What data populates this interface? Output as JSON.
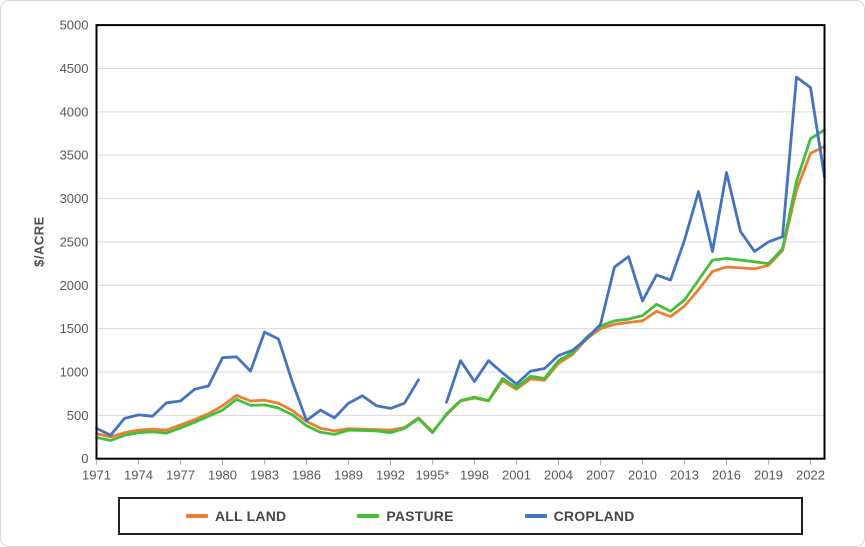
{
  "chart_data": {
    "type": "line",
    "title": "",
    "ylabel": "$/ACRE",
    "xlabel": "",
    "ylim": [
      0,
      5000
    ],
    "ytick_step": 500,
    "x_domain": [
      1971,
      2023
    ],
    "x_tick_start_year": 1971,
    "x_tick_interval": 3,
    "x_tick_labels": [
      "1971",
      "1974",
      "1977",
      "1980",
      "1983",
      "1986",
      "1989",
      "1992",
      "1995*",
      "1998",
      "2001",
      "2004",
      "2007",
      "2010",
      "2013",
      "2016",
      "2019",
      "2022"
    ],
    "grid": "horizontal",
    "legend_position": "bottom",
    "note": "CROPLAND has no data point for 1995 (marked 1995* on axis); series values run annually 1971-2023",
    "colors": {
      "all_land": "#ED7D31",
      "pasture": "#3FC13C",
      "cropland": "#4472C4",
      "gridline": "#D9D9D9",
      "axis_text": "#595959",
      "plot_border": "#000000"
    },
    "series": [
      {
        "name": "ALL LAND",
        "color": "#ED7D31",
        "values": [
          290,
          250,
          300,
          330,
          340,
          330,
          390,
          450,
          520,
          610,
          730,
          665,
          675,
          640,
          555,
          430,
          350,
          320,
          345,
          340,
          335,
          330,
          360,
          470,
          310,
          505,
          665,
          700,
          665,
          900,
          800,
          920,
          905,
          1100,
          1200,
          1380,
          1500,
          1550,
          1570,
          1590,
          1700,
          1640,
          1760,
          1950,
          2160,
          2210,
          2200,
          2190,
          2230,
          2400,
          3100,
          3520,
          3600
        ]
      },
      {
        "name": "PASTURE",
        "color": "#3FC13C",
        "values": [
          245,
          210,
          270,
          300,
          310,
          295,
          355,
          420,
          490,
          560,
          685,
          615,
          620,
          585,
          505,
          380,
          305,
          280,
          330,
          325,
          320,
          300,
          350,
          460,
          300,
          515,
          670,
          710,
          670,
          925,
          820,
          950,
          925,
          1130,
          1220,
          1400,
          1530,
          1590,
          1610,
          1650,
          1780,
          1700,
          1830,
          2060,
          2290,
          2310,
          2290,
          2270,
          2250,
          2420,
          3200,
          3690,
          3790
        ]
      },
      {
        "name": "CROPLAND",
        "color": "#4472C4",
        "values": [
          350,
          270,
          465,
          505,
          490,
          645,
          665,
          800,
          840,
          1165,
          1175,
          1010,
          1460,
          1380,
          880,
          440,
          560,
          470,
          640,
          725,
          610,
          580,
          640,
          910,
          null,
          650,
          1130,
          890,
          1130,
          990,
          860,
          1010,
          1040,
          1190,
          1250,
          1380,
          1550,
          2210,
          2330,
          1820,
          2120,
          2060,
          2520,
          3080,
          2390,
          3300,
          2620,
          2390,
          2500,
          2560,
          4400,
          4280,
          3250
        ]
      }
    ]
  },
  "legend": {
    "items": [
      "ALL LAND",
      "PASTURE",
      "CROPLAND"
    ]
  }
}
